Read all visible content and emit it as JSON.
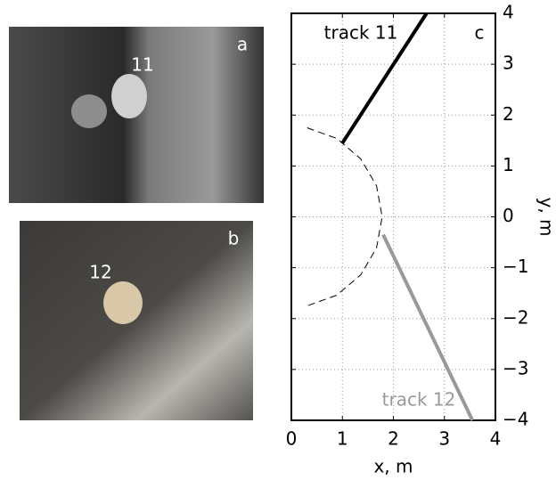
{
  "photos": [
    {
      "panel": "a",
      "track": "11"
    },
    {
      "panel": "b",
      "track": "12"
    }
  ],
  "chart_data": {
    "type": "line",
    "panel": "c",
    "xlabel": "x, m",
    "ylabel": "y, m",
    "xlim": [
      0,
      4
    ],
    "ylim": [
      -4,
      4
    ],
    "xticks": [
      0,
      1,
      2,
      3,
      4
    ],
    "yticks": [
      {
        "value": -4,
        "label": "−4"
      },
      {
        "value": -3,
        "label": "−3"
      },
      {
        "value": -2,
        "label": "−2"
      },
      {
        "value": -1,
        "label": "−1"
      },
      0,
      1,
      2,
      3,
      4
    ],
    "grid": true,
    "series": [
      {
        "name": "track 11",
        "color": "#000000",
        "x": [
          1.0,
          2.65
        ],
        "y": [
          1.45,
          4
        ]
      },
      {
        "name": "track 12",
        "color": "#999999",
        "x": [
          1.8,
          3.55
        ],
        "y": [
          -0.35,
          -4
        ]
      },
      {
        "color": "#000000",
        "dashed": true,
        "x": [
          0.31,
          0.89,
          1.36,
          1.67,
          1.78,
          1.67,
          1.36,
          0.89,
          0.31
        ],
        "y": [
          1.75,
          1.54,
          1.14,
          0.61,
          0,
          -0.61,
          -1.14,
          -1.54,
          -1.75
        ]
      }
    ]
  }
}
